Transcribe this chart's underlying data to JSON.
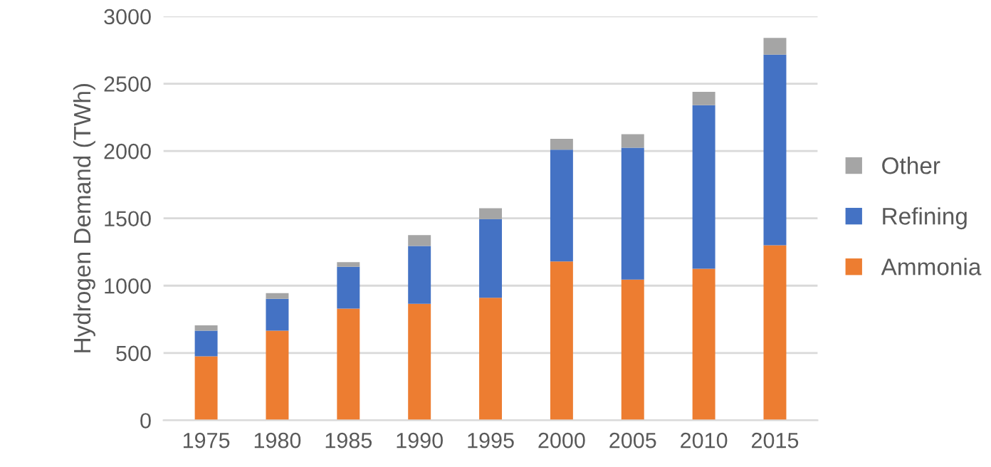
{
  "chart_data": {
    "type": "bar",
    "stacked": true,
    "ylabel": "Hydrogen Demand (TWh)",
    "categories": [
      "1975",
      "1980",
      "1985",
      "1990",
      "1995",
      "2000",
      "2005",
      "2010",
      "2015"
    ],
    "series": [
      {
        "name": "Ammonia",
        "color": "#ed7d31",
        "values": [
          475,
          665,
          830,
          865,
          910,
          1180,
          1045,
          1125,
          1300
        ]
      },
      {
        "name": "Refining",
        "color": "#4472c4",
        "values": [
          190,
          237,
          310,
          430,
          585,
          830,
          980,
          1215,
          1415
        ]
      },
      {
        "name": "Other",
        "color": "#a5a5a5",
        "values": [
          40,
          42,
          35,
          80,
          80,
          80,
          100,
          100,
          125
        ]
      }
    ],
    "ylim": [
      0,
      3000
    ],
    "yticks": [
      0,
      500,
      1000,
      1500,
      2000,
      2500,
      3000
    ],
    "grid": "y",
    "legend": "right"
  }
}
